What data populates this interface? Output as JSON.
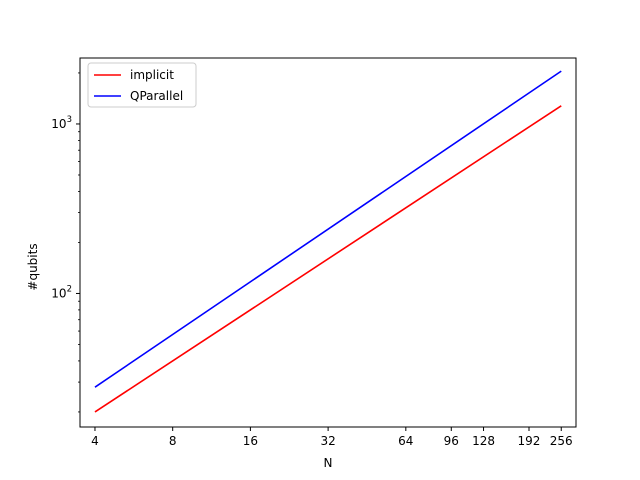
{
  "chart_data": {
    "type": "line",
    "title": "",
    "xlabel": "N",
    "ylabel": "#qubits",
    "x_scale": "log2",
    "y_scale": "log10",
    "xlim": [
      3.5,
      292
    ],
    "ylim": [
      16.3,
      2450
    ],
    "x_ticks": [
      4,
      8,
      16,
      32,
      64,
      96,
      128,
      192,
      256
    ],
    "x_tick_labels": [
      "4",
      "8",
      "16",
      "32",
      "64",
      "96",
      "128",
      "192",
      "256"
    ],
    "y_ticks": [
      100,
      1000
    ],
    "y_tick_labels": [
      {
        "base": "10",
        "exp": "2"
      },
      {
        "base": "10",
        "exp": "3"
      }
    ],
    "grid": false,
    "legend_position": "top-left",
    "series": [
      {
        "name": "implicit",
        "color": "#ff0000",
        "x": [
          4,
          256
        ],
        "y": [
          20,
          1280
        ]
      },
      {
        "name": "QParallel",
        "color": "#0000ff",
        "x": [
          4,
          256
        ],
        "y": [
          28,
          2050
        ]
      }
    ]
  }
}
